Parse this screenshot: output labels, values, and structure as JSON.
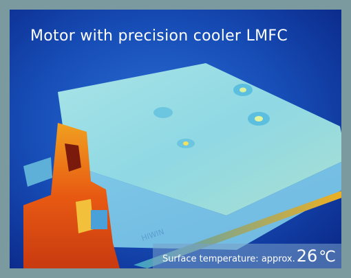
{
  "image": {
    "title": "Motor with precision cooler LMFC",
    "temperature_label": "Surface temperature: approx.",
    "temperature_value": "26",
    "temperature_unit": "℃",
    "colors": {
      "frame": "#7a9aa0",
      "background_cold": "#0b2a8e",
      "surface_cool": "#7fd0e6",
      "edge_hot": "#e04a10",
      "text": "#ffffff"
    }
  }
}
